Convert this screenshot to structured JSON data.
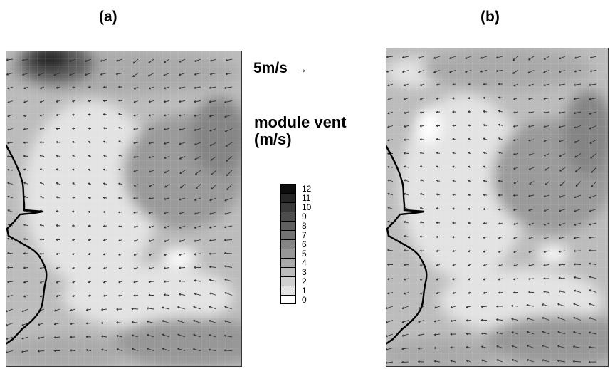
{
  "panels": [
    {
      "label": "(a)"
    },
    {
      "label": "(b)"
    }
  ],
  "scale_reference": {
    "label": "5m/s",
    "arrow_glyph": "→"
  },
  "legend": {
    "title_line1": "module vent",
    "title_line2": "(m/s)",
    "levels": [
      "12",
      "11",
      "10",
      "9",
      "8",
      "7",
      "6",
      "5",
      "4",
      "3",
      "2",
      "1",
      "0"
    ],
    "colors": [
      "#0d0d0d",
      "#262626",
      "#3a3a3a",
      "#4d4d4d",
      "#5f5f5f",
      "#727272",
      "#858585",
      "#979797",
      "#a9a9a9",
      "#bcbcbc",
      "#cfcfcf",
      "#e3e3e3",
      "#ffffff"
    ]
  },
  "map_style": {
    "field_background": "#cfcfcf",
    "arrow_color": "#333333",
    "coastline_color": "#000000",
    "dominant_wind_direction": "from east (westward flow)"
  }
}
